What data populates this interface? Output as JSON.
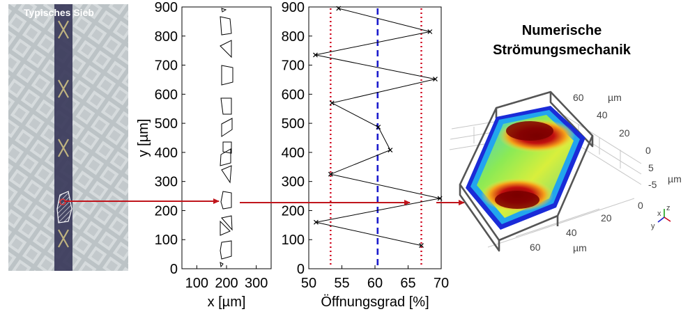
{
  "photo": {
    "label": "Typisches Sieb"
  },
  "geometry_plot": {
    "xlabel": "x [µm]",
    "ylabel": "y [µm]",
    "xlim": [
      50,
      350
    ],
    "ylim": [
      0,
      900
    ],
    "x_ticks": [
      "100",
      "200",
      "300"
    ],
    "y_ticks": [
      "0",
      "100",
      "200",
      "300",
      "400",
      "500",
      "600",
      "700",
      "800",
      "900"
    ]
  },
  "chart_data": {
    "type": "line",
    "xlabel": "Öffnungsgrad [%]",
    "ylabel": "",
    "xlim": [
      50,
      70
    ],
    "ylim": [
      0,
      900
    ],
    "x_ticks": [
      "50",
      "55",
      "60",
      "65",
      "70"
    ],
    "y_ticks": [
      "0",
      "100",
      "200",
      "300",
      "400",
      "500",
      "600",
      "700",
      "800",
      "900"
    ],
    "series": [
      {
        "x": [
          54.5,
          68.3,
          51.0,
          69.1,
          53.5,
          60.5,
          62.3,
          53.3,
          69.8,
          51.1,
          67.0
        ],
        "y": [
          895,
          815,
          735,
          652,
          570,
          487,
          408,
          325,
          242,
          160,
          80
        ]
      }
    ],
    "reference_lines": [
      {
        "x": 53.3,
        "style": "dotted",
        "color": "#d0021b"
      },
      {
        "x": 60.4,
        "style": "dashed",
        "color": "#1a1acc"
      },
      {
        "x": 67.0,
        "style": "dotted",
        "color": "#d0021b"
      }
    ],
    "grid": false
  },
  "cfd": {
    "title_line1": "Numerische",
    "title_line2": "Strömungsmechanik",
    "unit": "µm",
    "ticks_back": [
      "60",
      "40",
      "20"
    ],
    "ticks_right": [
      "0",
      "5",
      "-5"
    ],
    "ticks_front": [
      "0",
      "20",
      "40",
      "60"
    ],
    "triad_x": "x",
    "triad_y": "y",
    "triad_z": "z"
  },
  "colors": {
    "arrow": "#c0151c",
    "series_line": "#000000",
    "bound_line": "#d0021b",
    "mean_line": "#1a1acc"
  }
}
